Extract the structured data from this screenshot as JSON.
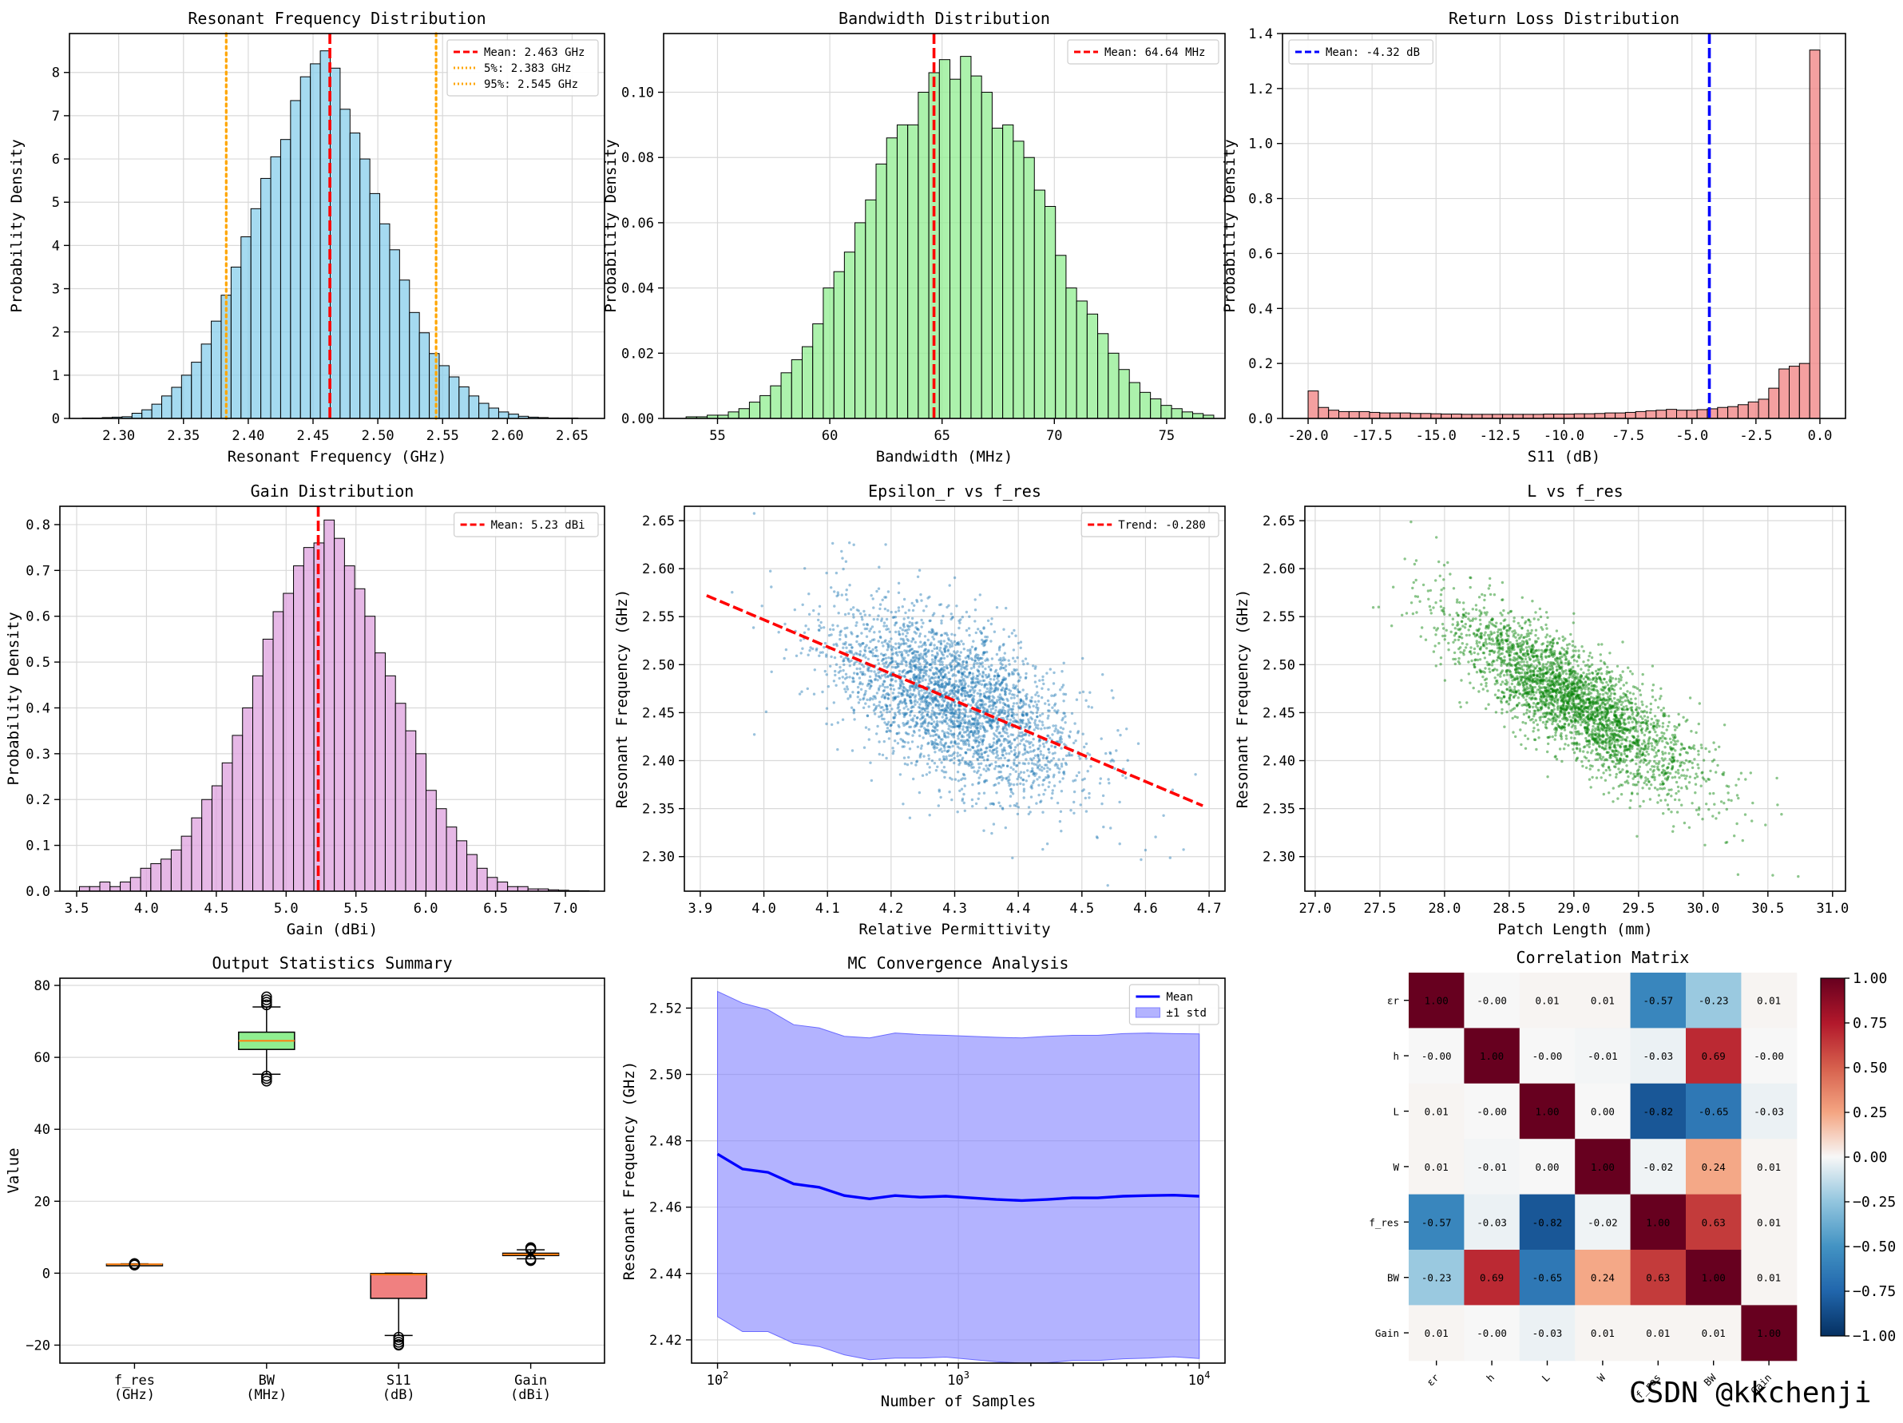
{
  "watermark": "CSDN @kkchenji",
  "colors": {
    "freq_hist": "#87ceeb",
    "bw_hist": "#90ee90",
    "s11_hist": "#f08080",
    "gain_hist": "#dda0dd",
    "mean_red": "#ff0000",
    "mean_blue": "#0000ff",
    "quantile_orange": "#ffa500",
    "scatter_blue": "#1f77b4",
    "scatter_green": "#008000",
    "band_fill": "#8080ff"
  },
  "chart_data": [
    {
      "id": "freq",
      "type": "bar",
      "title": "Resonant Frequency Distribution",
      "xlabel": "Resonant Frequency (GHz)",
      "ylabel": "Probability Density",
      "xlim": [
        2.262,
        2.675
      ],
      "ylim": [
        0,
        8.9
      ],
      "xticks": [
        "2.30",
        "2.35",
        "2.40",
        "2.45",
        "2.50",
        "2.55",
        "2.60",
        "2.65"
      ],
      "xtick_values": [
        2.3,
        2.35,
        2.4,
        2.45,
        2.5,
        2.55,
        2.6,
        2.65
      ],
      "yticks": [
        "0",
        "1",
        "2",
        "3",
        "4",
        "5",
        "6",
        "7",
        "8"
      ],
      "ytick_values": [
        0,
        1,
        2,
        3,
        4,
        5,
        6,
        7,
        8
      ],
      "bins_start": 2.272,
      "bin_width": 0.00765,
      "values": [
        0.01,
        0.01,
        0.02,
        0.03,
        0.04,
        0.12,
        0.2,
        0.33,
        0.52,
        0.72,
        1.0,
        1.3,
        1.72,
        2.25,
        2.85,
        3.5,
        4.2,
        4.85,
        5.55,
        6.05,
        6.45,
        7.35,
        7.9,
        8.2,
        8.5,
        8.1,
        7.15,
        6.6,
        6.0,
        5.2,
        4.5,
        3.9,
        3.2,
        2.45,
        1.98,
        1.5,
        1.22,
        0.96,
        0.73,
        0.52,
        0.35,
        0.24,
        0.15,
        0.1,
        0.05,
        0.03,
        0.02,
        0.01,
        0.01,
        0.01
      ],
      "vlines": [
        {
          "x": 2.463,
          "style": "dashed",
          "color": "#ff0000",
          "label": "Mean: 2.463 GHz"
        },
        {
          "x": 2.383,
          "style": "dotted",
          "color": "#ffa500",
          "label": "5%: 2.383 GHz"
        },
        {
          "x": 2.545,
          "style": "dotted",
          "color": "#ffa500",
          "label": "95%: 2.545 GHz"
        }
      ],
      "legend_position": "top-right"
    },
    {
      "id": "bw",
      "type": "bar",
      "title": "Bandwidth Distribution",
      "xlabel": "Bandwidth (MHz)",
      "ylabel": "Probability Density",
      "xlim": [
        52.6,
        77.6
      ],
      "ylim": [
        0,
        0.118
      ],
      "xticks": [
        "55",
        "60",
        "65",
        "70",
        "75"
      ],
      "xtick_values": [
        55,
        60,
        65,
        70,
        75
      ],
      "yticks": [
        "0.00",
        "0.02",
        "0.04",
        "0.06",
        "0.08",
        "0.10"
      ],
      "ytick_values": [
        0,
        0.02,
        0.04,
        0.06,
        0.08,
        0.1
      ],
      "bins_start": 53.6,
      "bin_width": 0.47,
      "values": [
        0.0005,
        0.0005,
        0.001,
        0.001,
        0.002,
        0.003,
        0.005,
        0.007,
        0.01,
        0.014,
        0.018,
        0.022,
        0.029,
        0.04,
        0.045,
        0.051,
        0.06,
        0.067,
        0.078,
        0.086,
        0.09,
        0.09,
        0.1,
        0.106,
        0.11,
        0.104,
        0.111,
        0.105,
        0.1,
        0.089,
        0.09,
        0.085,
        0.08,
        0.07,
        0.065,
        0.05,
        0.04,
        0.036,
        0.032,
        0.026,
        0.02,
        0.015,
        0.011,
        0.008,
        0.006,
        0.004,
        0.003,
        0.002,
        0.0015,
        0.001
      ],
      "vlines": [
        {
          "x": 64.64,
          "style": "dashed",
          "color": "#ff0000",
          "label": "Mean: 64.64 MHz"
        }
      ],
      "legend_position": "top-right"
    },
    {
      "id": "s11",
      "type": "bar",
      "title": "Return Loss Distribution",
      "xlabel": "S11 (dB)",
      "ylabel": "Probability Density",
      "xlim": [
        -21.0,
        1.0
      ],
      "ylim": [
        0,
        1.4
      ],
      "xticks": [
        "-20.0",
        "-17.5",
        "-15.0",
        "-12.5",
        "-10.0",
        "-7.5",
        "-5.0",
        "-2.5",
        "0.0"
      ],
      "xtick_values": [
        -20,
        -17.5,
        -15,
        -12.5,
        -10,
        -7.5,
        -5,
        -2.5,
        0
      ],
      "yticks": [
        "0.0",
        "0.2",
        "0.4",
        "0.6",
        "0.8",
        "1.0",
        "1.2",
        "1.4"
      ],
      "ytick_values": [
        0,
        0.2,
        0.4,
        0.6,
        0.8,
        1.0,
        1.2,
        1.4
      ],
      "bins_start": -20.0,
      "bin_width": 0.4,
      "values": [
        0.1,
        0.04,
        0.03,
        0.025,
        0.025,
        0.025,
        0.022,
        0.02,
        0.02,
        0.02,
        0.018,
        0.018,
        0.017,
        0.016,
        0.016,
        0.015,
        0.015,
        0.015,
        0.015,
        0.015,
        0.015,
        0.015,
        0.015,
        0.016,
        0.016,
        0.016,
        0.017,
        0.017,
        0.018,
        0.02,
        0.02,
        0.022,
        0.025,
        0.028,
        0.03,
        0.033,
        0.03,
        0.03,
        0.032,
        0.035,
        0.04,
        0.043,
        0.05,
        0.06,
        0.07,
        0.11,
        0.18,
        0.19,
        0.2,
        1.34
      ],
      "vlines": [
        {
          "x": -4.32,
          "style": "dashed",
          "color": "#0000ff",
          "label": "Mean: -4.32 dB"
        }
      ],
      "legend_position": "top-left"
    },
    {
      "id": "gain",
      "type": "bar",
      "title": "Gain Distribution",
      "xlabel": "Gain (dBi)",
      "ylabel": "Probability Density",
      "xlim": [
        3.38,
        7.28
      ],
      "ylim": [
        0,
        0.84
      ],
      "xticks": [
        "3.5",
        "4.0",
        "4.5",
        "5.0",
        "5.5",
        "6.0",
        "6.5",
        "7.0"
      ],
      "xtick_values": [
        3.5,
        4.0,
        4.5,
        5.0,
        5.5,
        6.0,
        6.5,
        7.0
      ],
      "yticks": [
        "0.0",
        "0.1",
        "0.2",
        "0.3",
        "0.4",
        "0.5",
        "0.6",
        "0.7",
        "0.8"
      ],
      "ytick_values": [
        0,
        0.1,
        0.2,
        0.3,
        0.4,
        0.5,
        0.6,
        0.7,
        0.8
      ],
      "bins_start": 3.52,
      "bin_width": 0.073,
      "values": [
        0.01,
        0.01,
        0.02,
        0.01,
        0.02,
        0.03,
        0.05,
        0.06,
        0.07,
        0.09,
        0.12,
        0.16,
        0.2,
        0.23,
        0.28,
        0.34,
        0.4,
        0.47,
        0.55,
        0.61,
        0.65,
        0.71,
        0.75,
        0.76,
        0.81,
        0.77,
        0.71,
        0.66,
        0.6,
        0.52,
        0.47,
        0.41,
        0.35,
        0.3,
        0.22,
        0.18,
        0.14,
        0.11,
        0.08,
        0.05,
        0.03,
        0.02,
        0.01,
        0.01,
        0.005,
        0.005,
        0.003,
        0.002,
        0.001,
        0.001
      ],
      "vlines": [
        {
          "x": 5.23,
          "style": "dashed",
          "color": "#ff0000",
          "label": "Mean: 5.23 dBi"
        }
      ],
      "legend_position": "top-right"
    },
    {
      "id": "eps",
      "type": "scatter",
      "title": "Epsilon_r vs f_res",
      "xlabel": "Relative Permittivity",
      "ylabel": "Resonant Frequency (GHz)",
      "xlim": [
        3.875,
        4.725
      ],
      "ylim": [
        2.264,
        2.665
      ],
      "xticks": [
        "3.9",
        "4.0",
        "4.1",
        "4.2",
        "4.3",
        "4.4",
        "4.5",
        "4.6",
        "4.7"
      ],
      "xtick_values": [
        3.9,
        4.0,
        4.1,
        4.2,
        4.3,
        4.4,
        4.5,
        4.6,
        4.7
      ],
      "yticks": [
        "2.30",
        "2.35",
        "2.40",
        "2.45",
        "2.50",
        "2.55",
        "2.60",
        "2.65"
      ],
      "ytick_values": [
        2.3,
        2.35,
        2.4,
        2.45,
        2.5,
        2.55,
        2.6,
        2.65
      ],
      "x_mean": 4.3,
      "x_std": 0.1,
      "y_mean": 2.463,
      "y_std": 0.049,
      "correlation": -0.57,
      "n_points": 3000,
      "trend": {
        "x": [
          3.91,
          4.69
        ],
        "y": [
          2.572,
          2.353
        ],
        "label": "Trend: -0.280"
      },
      "legend_position": "top-right"
    },
    {
      "id": "length",
      "type": "scatter",
      "title": "L vs f_res",
      "xlabel": "Patch Length (mm)",
      "ylabel": "Resonant Frequency (GHz)",
      "xlim": [
        26.92,
        31.1
      ],
      "ylim": [
        2.264,
        2.665
      ],
      "xticks": [
        "27.0",
        "27.5",
        "28.0",
        "28.5",
        "29.0",
        "29.5",
        "30.0",
        "30.5",
        "31.0"
      ],
      "xtick_values": [
        27.0,
        27.5,
        28.0,
        28.5,
        29.0,
        29.5,
        30.0,
        30.5,
        31.0
      ],
      "yticks": [
        "2.30",
        "2.35",
        "2.40",
        "2.45",
        "2.50",
        "2.55",
        "2.60",
        "2.65"
      ],
      "ytick_values": [
        2.3,
        2.35,
        2.4,
        2.45,
        2.5,
        2.55,
        2.6,
        2.65
      ],
      "x_mean": 29.0,
      "x_std": 0.48,
      "y_mean": 2.463,
      "y_std": 0.049,
      "correlation": -0.82,
      "n_points": 3000
    },
    {
      "id": "box",
      "type": "box",
      "title": "Output Statistics Summary",
      "xlabel": "",
      "ylabel": "Value",
      "ylim": [
        -25,
        82
      ],
      "yticks": [
        "−20",
        "0",
        "20",
        "40",
        "60",
        "80"
      ],
      "ytick_values": [
        -20,
        0,
        20,
        40,
        60,
        80
      ],
      "categories": [
        "f_res\n(GHz)",
        "BW\n(MHz)",
        "S11\n(dB)",
        "Gain\n(dBi)"
      ],
      "boxes": [
        {
          "name": "f_res (GHz)",
          "q1": 2.43,
          "median": 2.46,
          "q3": 2.5,
          "lower_whisker": 2.33,
          "upper_whisker": 2.6,
          "outliers_low": [
            2.27,
            2.29,
            2.31
          ],
          "outliers_high": [
            2.62,
            2.64,
            2.66
          ],
          "color": "#87ceeb"
        },
        {
          "name": "BW (MHz)",
          "q1": 62.2,
          "median": 64.6,
          "q3": 67.0,
          "lower_whisker": 55.3,
          "upper_whisker": 74.0,
          "outliers_low": [
            53.4,
            54.1,
            54.8
          ],
          "outliers_high": [
            74.6,
            75.3,
            76.0,
            76.8
          ],
          "color": "#90ee90"
        },
        {
          "name": "S11 (dB)",
          "q1": -7.0,
          "median": -0.4,
          "q3": -0.1,
          "lower_whisker": -17.3,
          "upper_whisker": 0.0,
          "outliers_low": [
            -17.8,
            -18.5,
            -19.2,
            -19.8,
            -20.0
          ],
          "outliers_high": [],
          "color": "#f08080"
        },
        {
          "name": "Gain (dBi)",
          "q1": 4.9,
          "median": 5.23,
          "q3": 5.55,
          "lower_whisker": 4.0,
          "upper_whisker": 6.5,
          "outliers_low": [
            3.5,
            3.7,
            3.9
          ],
          "outliers_high": [
            6.6,
            6.8,
            7.1
          ],
          "color": "#dda0dd"
        }
      ]
    },
    {
      "id": "conv",
      "type": "line",
      "title": "MC Convergence Analysis",
      "xlabel": "Number of Samples",
      "ylabel": "Resonant Frequency (GHz)",
      "xscale": "log",
      "xlim": [
        78,
        12800
      ],
      "ylim": [
        2.413,
        2.529
      ],
      "xticks": [
        "10",
        "10",
        "10"
      ],
      "xtick_exponents": [
        "2",
        "3",
        "4"
      ],
      "xtick_values": [
        100,
        1000,
        10000
      ],
      "yticks": [
        "2.42",
        "2.44",
        "2.46",
        "2.48",
        "2.50",
        "2.52"
      ],
      "ytick_values": [
        2.42,
        2.44,
        2.46,
        2.48,
        2.5,
        2.52
      ],
      "x": [
        100,
        127,
        162,
        207,
        264,
        336,
        428,
        546,
        695,
        886,
        1129,
        1438,
        1833,
        2336,
        2976,
        3793,
        4833,
        6158,
        7848,
        10000
      ],
      "series": [
        {
          "name": "Mean",
          "values": [
            2.476,
            2.4715,
            2.4705,
            2.467,
            2.466,
            2.4635,
            2.4625,
            2.4635,
            2.463,
            2.4633,
            2.4628,
            2.4623,
            2.462,
            2.4623,
            2.4628,
            2.4628,
            2.4633,
            2.4635,
            2.4636,
            2.4633
          ]
        },
        {
          "name": "±1 std",
          "upper": [
            2.525,
            2.5215,
            2.5195,
            2.515,
            2.514,
            2.5115,
            2.511,
            2.5125,
            2.512,
            2.5118,
            2.5115,
            2.5112,
            2.511,
            2.5115,
            2.5118,
            2.5118,
            2.5123,
            2.5125,
            2.5123,
            2.5122
          ],
          "lower": [
            2.427,
            2.4225,
            2.4225,
            2.419,
            2.418,
            2.4155,
            2.414,
            2.4145,
            2.4145,
            2.4148,
            2.4141,
            2.4134,
            2.413,
            2.4131,
            2.4138,
            2.4138,
            2.4143,
            2.4145,
            2.4149,
            2.4144
          ]
        }
      ],
      "legend": [
        "Mean",
        "±1 std"
      ],
      "legend_position": "top-right"
    },
    {
      "id": "corr",
      "type": "heatmap",
      "title": "Correlation Matrix",
      "labels": [
        "εr",
        "h",
        "L",
        "W",
        "f_res",
        "BW",
        "Gain"
      ],
      "matrix": [
        [
          1.0,
          -0.0,
          0.01,
          0.01,
          -0.57,
          -0.23,
          0.01
        ],
        [
          -0.0,
          1.0,
          -0.0,
          -0.01,
          -0.03,
          0.69,
          -0.0
        ],
        [
          0.01,
          -0.0,
          1.0,
          0.0,
          -0.82,
          -0.65,
          -0.03
        ],
        [
          0.01,
          -0.01,
          0.0,
          1.0,
          -0.02,
          0.24,
          0.01
        ],
        [
          -0.57,
          -0.03,
          -0.82,
          -0.02,
          1.0,
          0.63,
          0.01
        ],
        [
          -0.23,
          0.69,
          -0.65,
          0.24,
          0.63,
          1.0,
          0.01
        ],
        [
          0.01,
          -0.0,
          -0.03,
          0.01,
          0.01,
          0.01,
          1.0
        ]
      ],
      "cell_text": [
        [
          "1.00",
          "-0.00",
          "0.01",
          "0.01",
          "-0.57",
          "-0.23",
          "0.01"
        ],
        [
          "-0.00",
          "1.00",
          "-0.00",
          "-0.01",
          "-0.03",
          "0.69",
          "-0.00"
        ],
        [
          "0.01",
          "-0.00",
          "1.00",
          "0.00",
          "-0.82",
          "-0.65",
          "-0.03"
        ],
        [
          "0.01",
          "-0.01",
          "0.00",
          "1.00",
          "-0.02",
          "0.24",
          "0.01"
        ],
        [
          "-0.57",
          "-0.03",
          "-0.82",
          "-0.02",
          "1.00",
          "0.63",
          "0.01"
        ],
        [
          "-0.23",
          "0.69",
          "-0.65",
          "0.24",
          "0.63",
          "1.00",
          "0.01"
        ],
        [
          "0.01",
          "-0.00",
          "-0.03",
          "0.01",
          "0.01",
          "0.01",
          "1.00"
        ]
      ],
      "colorbar": {
        "ticks": [
          "1.00",
          "0.75",
          "0.50",
          "0.25",
          "0.00",
          "−0.25",
          "−0.50",
          "−0.75",
          "−1.00"
        ],
        "tick_values": [
          1,
          0.75,
          0.5,
          0.25,
          0,
          -0.25,
          -0.5,
          -0.75,
          -1
        ],
        "colormap": "RdBu_r"
      }
    }
  ]
}
